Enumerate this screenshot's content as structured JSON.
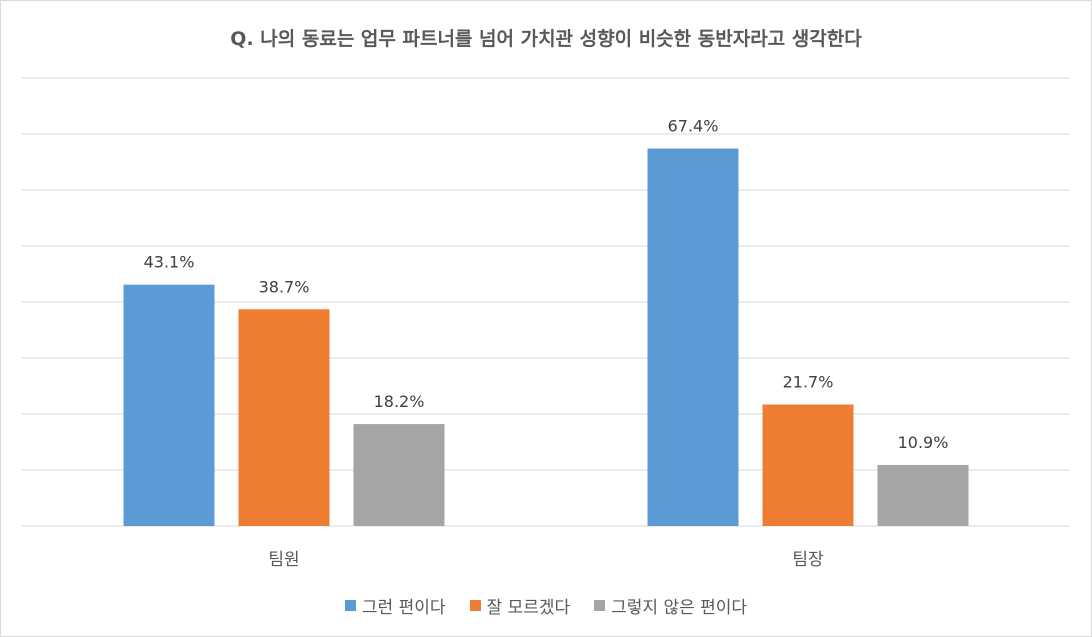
{
  "chart_data": {
    "type": "bar",
    "title": "Q. 나의 동료는 업무 파트너를 넘어 가치관 성향이 비슷한 동반자라고 생각한다",
    "xlabel": "",
    "ylabel": "",
    "categories": [
      "팀원",
      "팀장"
    ],
    "series": [
      {
        "name": "그런 편이다",
        "color": "#5b9bd5",
        "values": [
          43.1,
          67.4
        ],
        "labels": [
          "43.1%",
          "67.4%"
        ]
      },
      {
        "name": "잘 모르겠다",
        "color": "#ed7d31",
        "values": [
          38.7,
          21.7
        ],
        "labels": [
          "38.7%",
          "21.7%"
        ]
      },
      {
        "name": "그렇지 않은 편이다",
        "color": "#a5a5a5",
        "values": [
          18.2,
          10.9
        ],
        "labels": [
          "18.2%",
          "10.9%"
        ]
      }
    ],
    "ylim": [
      0,
      80
    ],
    "grid": true,
    "legend_position": "bottom"
  }
}
